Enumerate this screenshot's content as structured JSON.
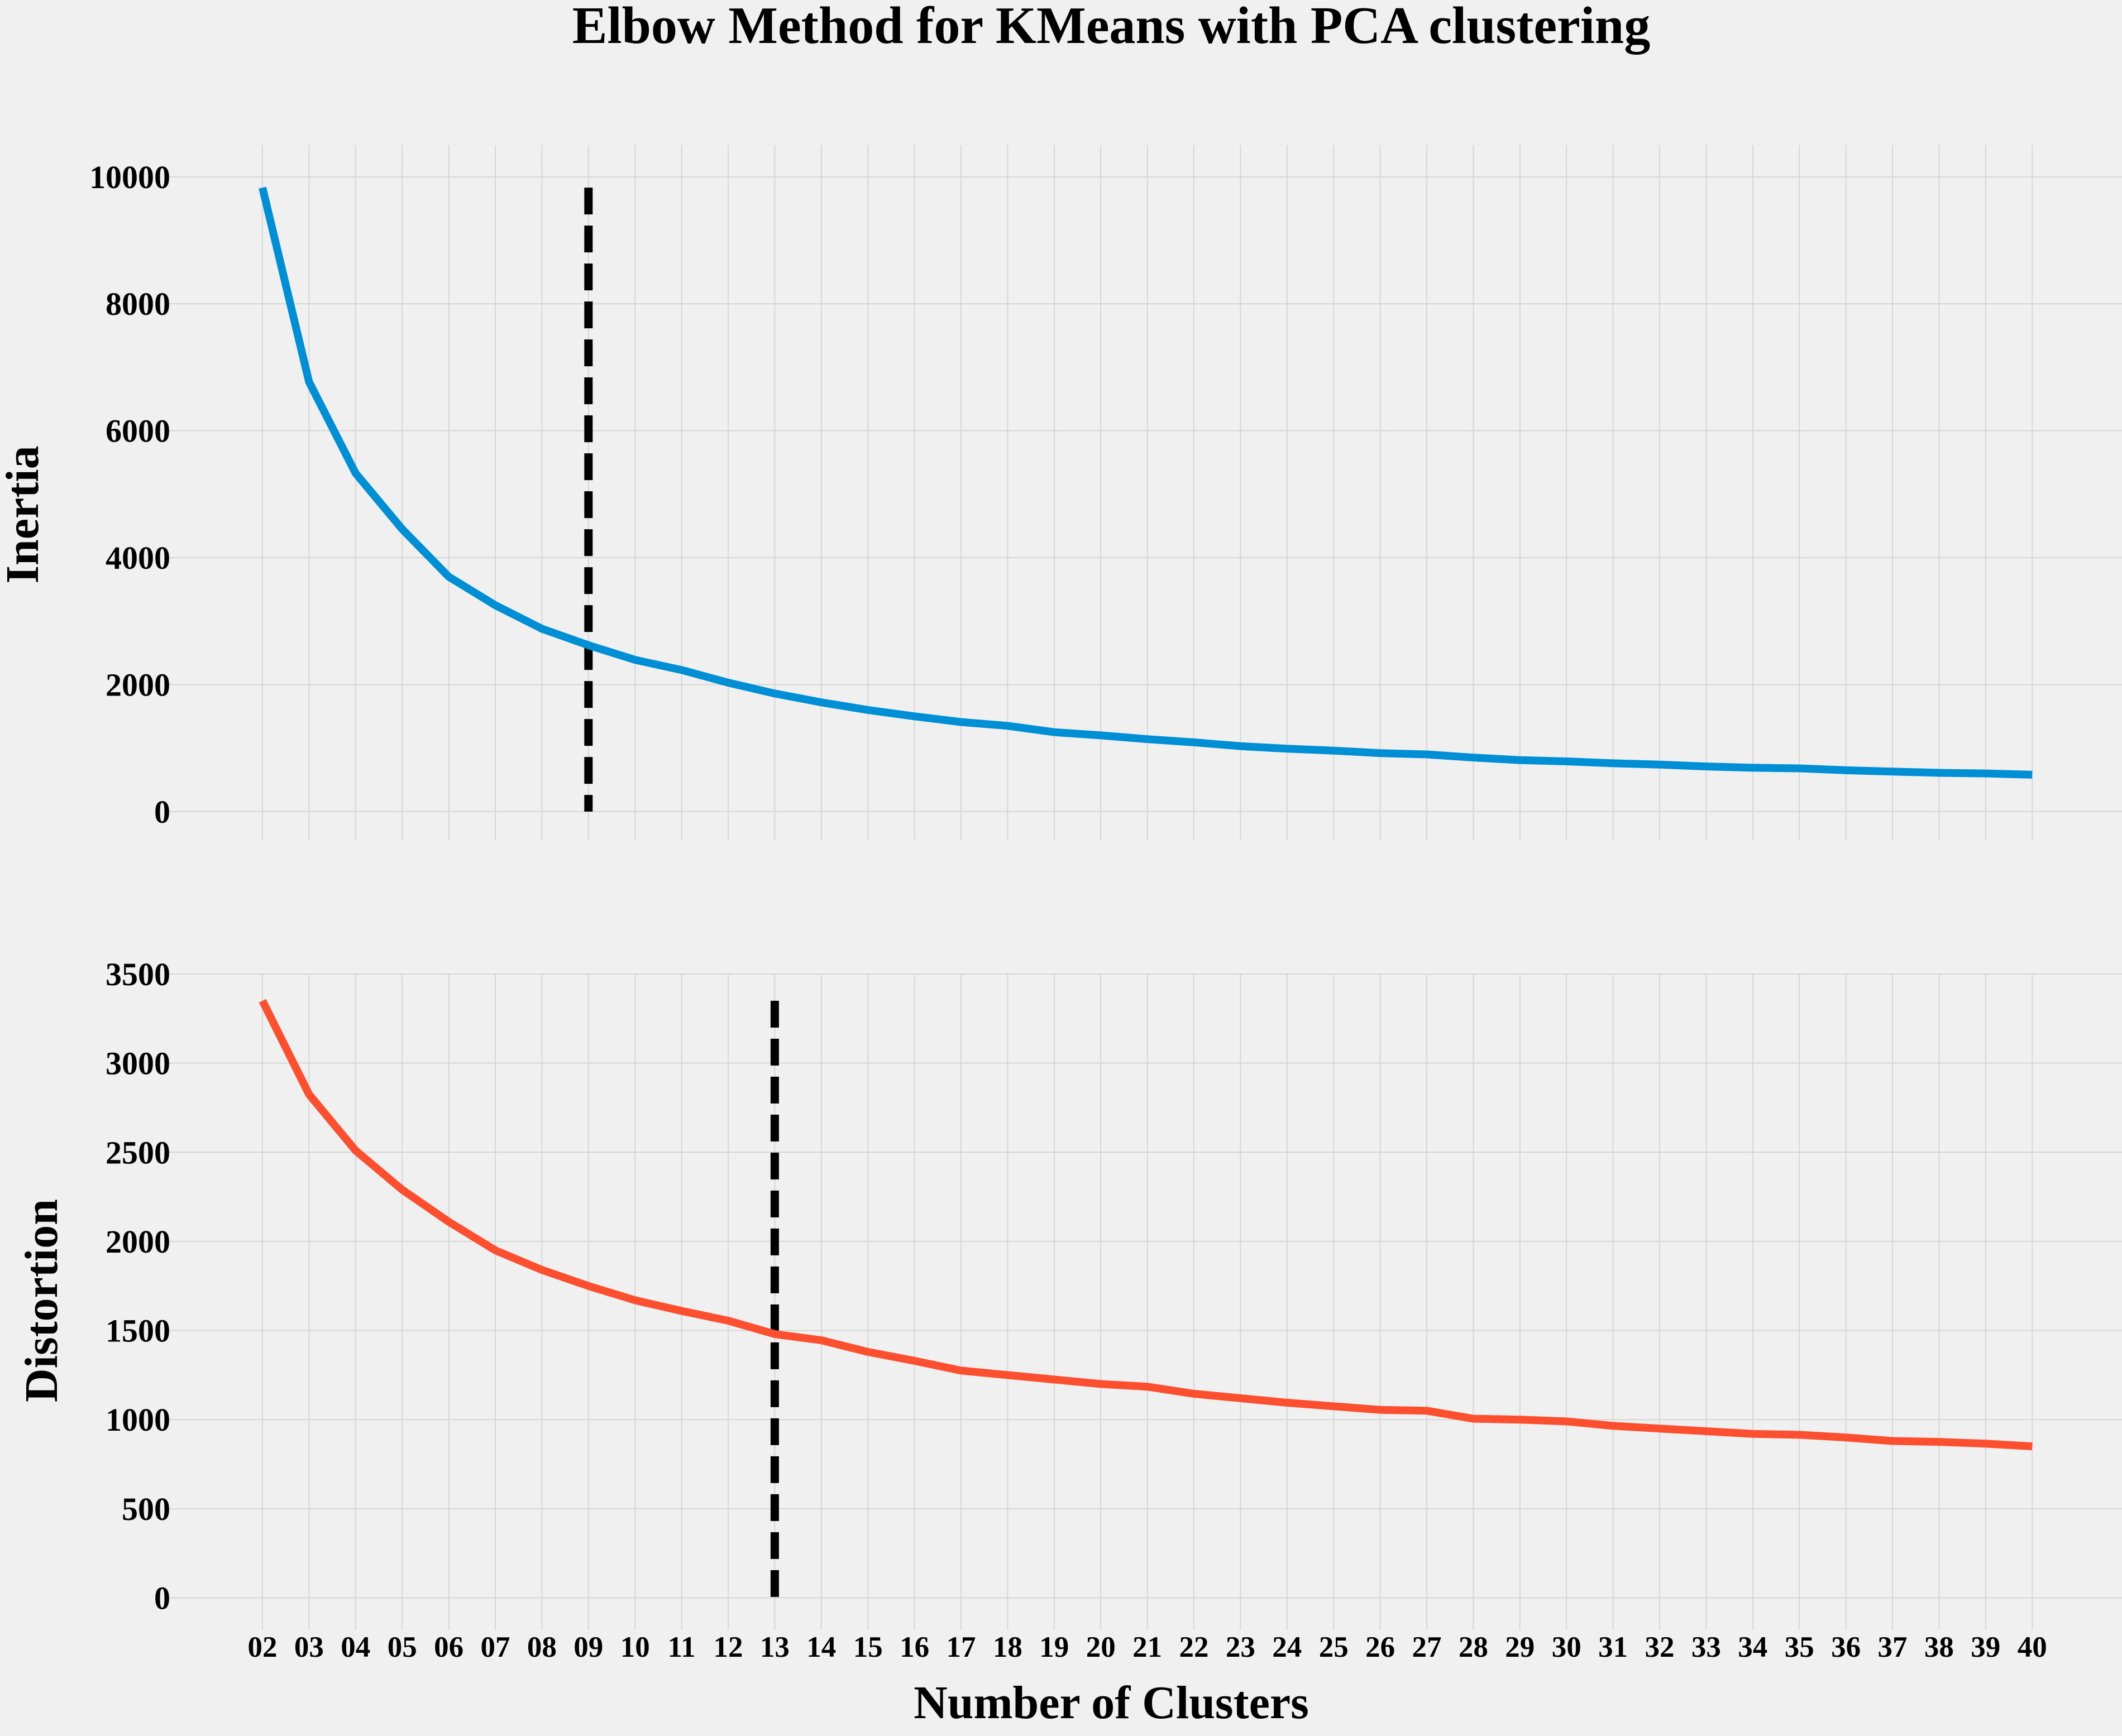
{
  "title": "Elbow Method for KMeans with PCA clustering",
  "colors": {
    "background": "#f0f0f0",
    "grid": "#d6d6d6",
    "marker": "#000000"
  },
  "chart_data": [
    {
      "type": "line",
      "name": "inertia",
      "ylabel": "Inertia",
      "xlabel": "",
      "color": "#008fd5",
      "categories": [
        "02",
        "03",
        "04",
        "05",
        "06",
        "07",
        "08",
        "09",
        "10",
        "11",
        "12",
        "13",
        "14",
        "15",
        "16",
        "17",
        "18",
        "19",
        "20",
        "21",
        "22",
        "23",
        "24",
        "25",
        "26",
        "27",
        "28",
        "29",
        "30",
        "31",
        "32",
        "33",
        "34",
        "35",
        "36",
        "37",
        "38",
        "39",
        "40"
      ],
      "values": [
        9830,
        6770,
        5330,
        4450,
        3700,
        3250,
        2880,
        2620,
        2390,
        2230,
        2030,
        1860,
        1720,
        1600,
        1500,
        1410,
        1350,
        1250,
        1200,
        1140,
        1090,
        1030,
        990,
        960,
        920,
        900,
        850,
        810,
        790,
        760,
        740,
        710,
        690,
        680,
        650,
        630,
        610,
        600,
        580
      ],
      "ylim": [
        -450,
        10500
      ],
      "yticks": [
        "0",
        "2000",
        "4000",
        "6000",
        "8000",
        "10000"
      ],
      "elbow": {
        "category": "09",
        "ymax": 9830
      }
    },
    {
      "type": "line",
      "name": "distortion",
      "ylabel": "Distortion",
      "xlabel": "Number of Clusters",
      "color": "#fc4f30",
      "categories": [
        "02",
        "03",
        "04",
        "05",
        "06",
        "07",
        "08",
        "09",
        "10",
        "11",
        "12",
        "13",
        "14",
        "15",
        "16",
        "17",
        "18",
        "19",
        "20",
        "21",
        "22",
        "23",
        "24",
        "25",
        "26",
        "27",
        "28",
        "29",
        "30",
        "31",
        "32",
        "33",
        "34",
        "35",
        "36",
        "37",
        "38",
        "39",
        "40"
      ],
      "values": [
        3350,
        2825,
        2510,
        2290,
        2110,
        1950,
        1840,
        1750,
        1670,
        1610,
        1555,
        1480,
        1445,
        1380,
        1330,
        1275,
        1250,
        1225,
        1200,
        1185,
        1145,
        1120,
        1095,
        1075,
        1055,
        1050,
        1005,
        1000,
        990,
        965,
        950,
        935,
        920,
        915,
        900,
        880,
        875,
        865,
        850
      ],
      "ylim": [
        -180,
        3500
      ],
      "yticks": [
        "0",
        "500",
        "1000",
        "1500",
        "2000",
        "2500",
        "3000",
        "3500"
      ],
      "elbow": {
        "category": "13",
        "ymax": 3350
      }
    }
  ]
}
